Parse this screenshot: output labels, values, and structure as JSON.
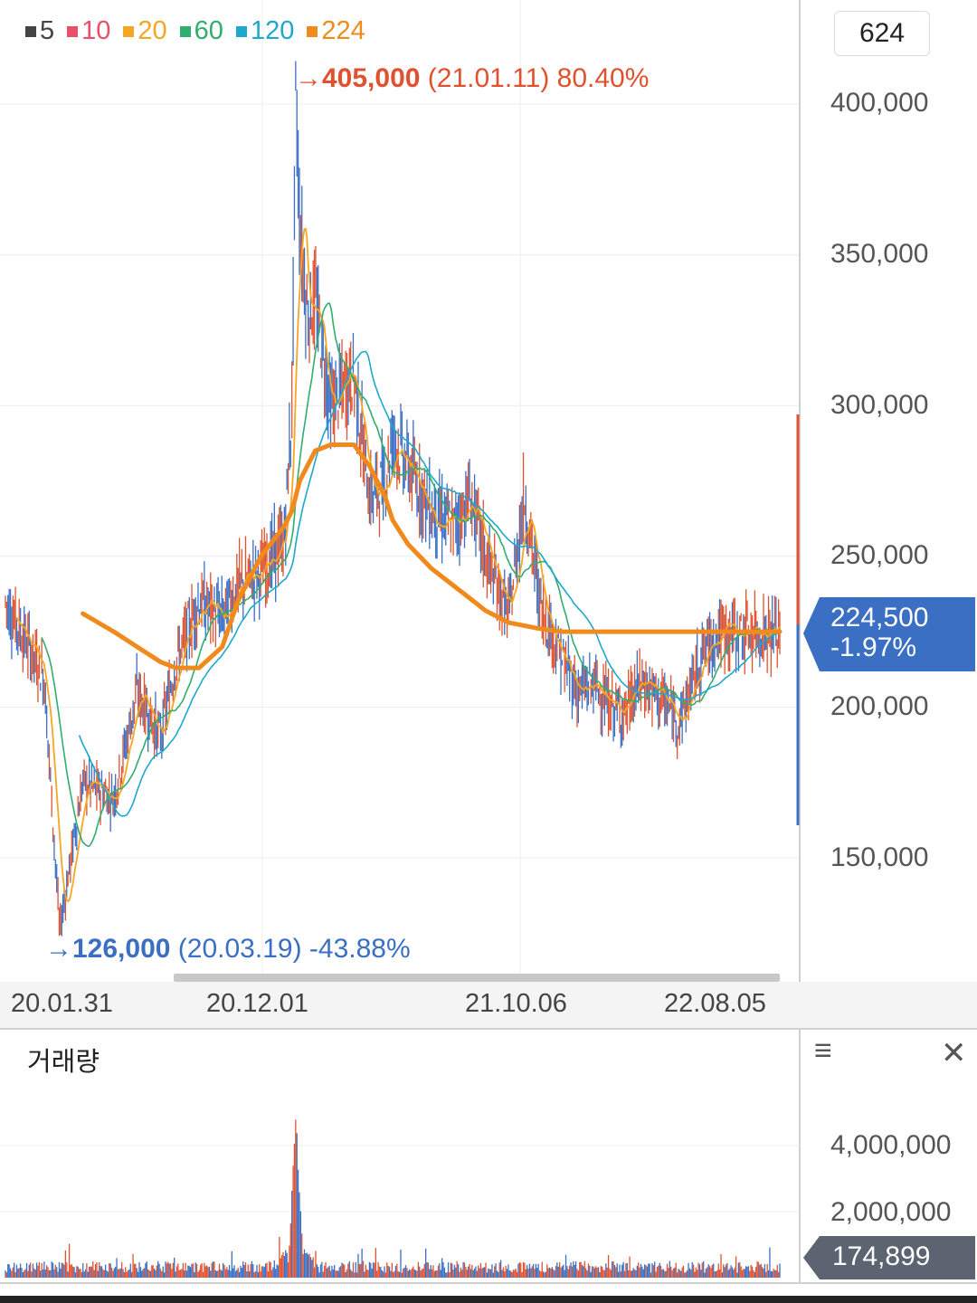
{
  "legend": [
    {
      "label": "5",
      "color": "#444444"
    },
    {
      "label": "10",
      "color": "#e8506a"
    },
    {
      "label": "20",
      "color": "#f5a623"
    },
    {
      "label": "60",
      "color": "#2fae6e"
    },
    {
      "label": "120",
      "color": "#1ea8cc"
    },
    {
      "label": "224",
      "color": "#f08a1c"
    }
  ],
  "count_badge": "624",
  "price_axis": [
    "400,000",
    "350,000",
    "300,000",
    "250,000",
    "200,000",
    "150,000"
  ],
  "current_price": {
    "value": "224,500",
    "change": "-1.97%"
  },
  "high_annotation": {
    "arrow": "→",
    "price": "405,000",
    "date": "(21.01.11)",
    "change": "80.40%"
  },
  "low_annotation": {
    "arrow": "→",
    "price": "126,000",
    "date": "(20.03.19)",
    "change": "-43.88%"
  },
  "date_axis": [
    "20.01.31",
    "20.12.01",
    "21.10.06",
    "22.08.05"
  ],
  "volume_panel": {
    "title": "거래량",
    "axis": [
      "4,000,000",
      "2,000,000"
    ],
    "current_volume": "174,899",
    "menu_icon": "≡",
    "close_icon": "✕"
  },
  "colors": {
    "up": "#e0522f",
    "down": "#3a6fc4",
    "tag": "#3a6fc4",
    "vol_tag": "#5b6470"
  },
  "chart_data": {
    "type": "line",
    "x": [
      0,
      0.02,
      0.05,
      0.07,
      0.1,
      0.14,
      0.17,
      0.2,
      0.22,
      0.25,
      0.28,
      0.3,
      0.33,
      0.36,
      0.37,
      0.375,
      0.38,
      0.39,
      0.4,
      0.42,
      0.45,
      0.47,
      0.49,
      0.5,
      0.52,
      0.55,
      0.58,
      0.6,
      0.62,
      0.65,
      0.67,
      0.69,
      0.72,
      0.74,
      0.76,
      0.78,
      0.8,
      0.82,
      0.85,
      0.87,
      0.9,
      0.92,
      0.95,
      0.97,
      1.0
    ],
    "x_meaning": "fraction of displayed period 20.01.31 → 22.10",
    "price": [
      235000,
      225000,
      210000,
      126000,
      175000,
      170000,
      205000,
      190000,
      215000,
      235000,
      230000,
      240000,
      245000,
      255000,
      300000,
      405000,
      360000,
      330000,
      335000,
      300000,
      310000,
      270000,
      275000,
      290000,
      280000,
      265000,
      260000,
      270000,
      250000,
      230000,
      270000,
      235000,
      215000,
      205000,
      208000,
      200000,
      198000,
      208000,
      202000,
      195000,
      218000,
      224500,
      224500,
      224500,
      224500
    ],
    "ma224": [
      null,
      null,
      null,
      null,
      231000,
      225000,
      220000,
      215000,
      213000,
      213000,
      220000,
      235000,
      250000,
      260000,
      265000,
      270000,
      275000,
      280000,
      285000,
      287000,
      287000,
      280000,
      270000,
      262000,
      254000,
      246000,
      240000,
      236000,
      232000,
      228000,
      227000,
      226000,
      225000,
      225000,
      225000,
      225000,
      225000,
      225000,
      225000,
      225000,
      225000,
      225000,
      225000,
      225000,
      225000
    ],
    "volume_peak": 4400000,
    "ylim": [
      110000,
      415000
    ],
    "volume_ylim": [
      0,
      5000000
    ],
    "grid": true
  }
}
